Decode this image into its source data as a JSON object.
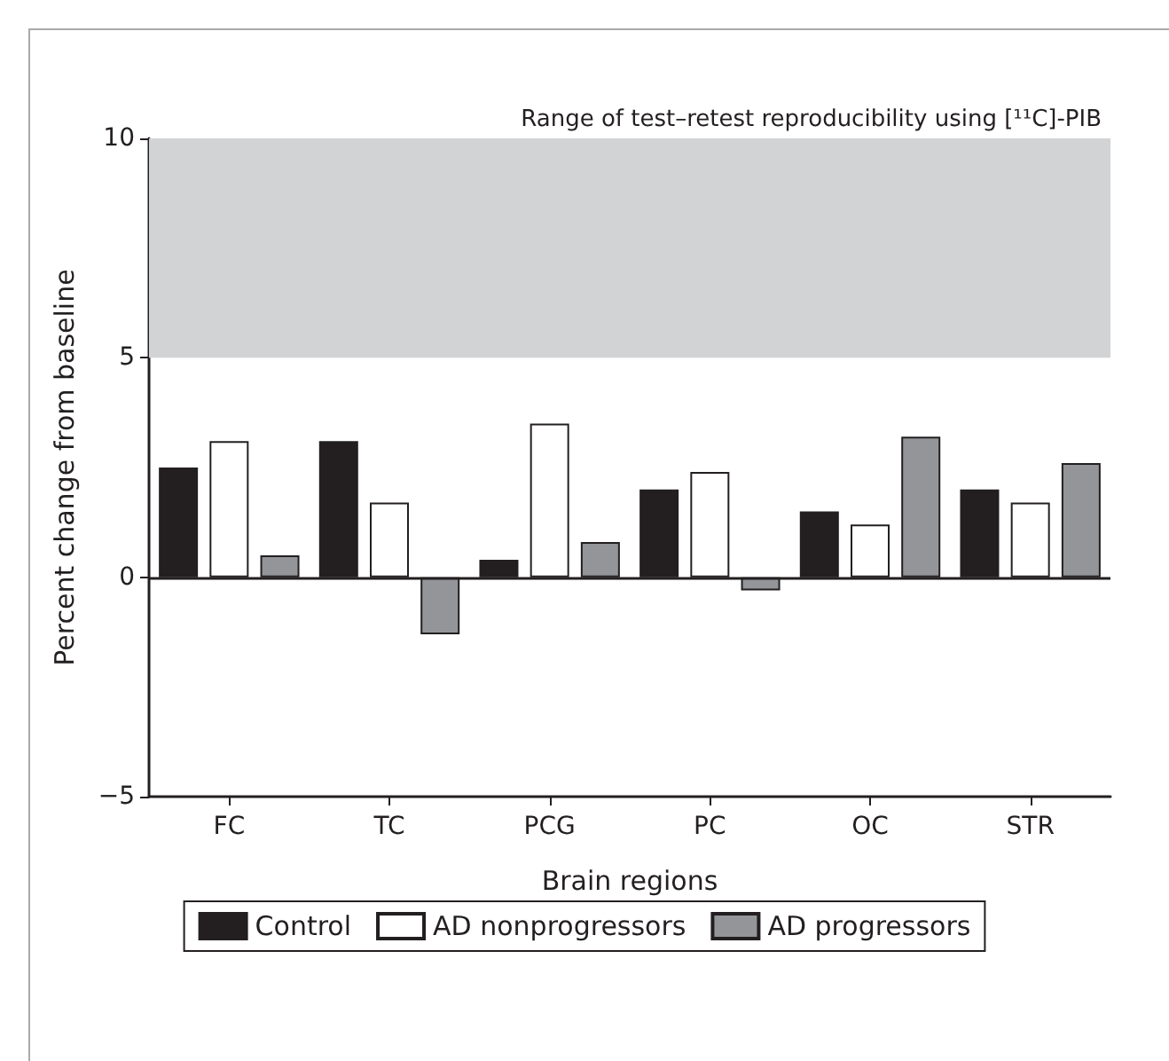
{
  "chart_data": {
    "type": "bar",
    "xlabel": "Brain regions",
    "ylabel": "Percent change from baseline",
    "categories": [
      "FC",
      "TC",
      "PCG",
      "PC",
      "OC",
      "STR"
    ],
    "series": [
      {
        "name": "Control",
        "color": "#231f20",
        "values": [
          2.5,
          3.1,
          0.4,
          2.0,
          1.5,
          2.0
        ]
      },
      {
        "name": "AD nonprogressors",
        "color": "#ffffff",
        "values": [
          3.1,
          1.7,
          3.5,
          2.4,
          1.2,
          1.7
        ]
      },
      {
        "name": "AD progressors",
        "color": "#939598",
        "values": [
          0.5,
          -1.3,
          0.8,
          -0.3,
          3.2,
          2.6
        ]
      }
    ],
    "ylim": [
      -5,
      10
    ],
    "yticks": [
      -5,
      0,
      5,
      10
    ],
    "bands": [
      {
        "axis": "y",
        "from": 5,
        "to": 10,
        "label": "Range of test–retest reproducibility using [¹¹C]-PIB",
        "color": "#d1d3d4"
      }
    ],
    "ref_lines": [
      {
        "axis": "y",
        "value": 0,
        "color": "#231f20"
      }
    ],
    "grid": false,
    "legend": "bottom"
  }
}
